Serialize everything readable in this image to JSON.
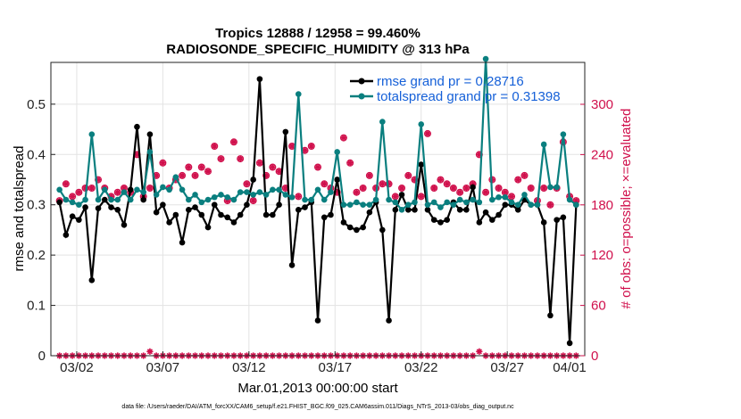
{
  "chart_data": {
    "type": "line",
    "title": [
      "Tropics 12888 / 12958 = 99.460%",
      "RADIOSONDE_SPECIFIC_HUMIDITY @ 313 hPa"
    ],
    "ylabel_left": "rmse and totalspread",
    "ylabel_right": "# of obs: o=possible; ×=evaluated",
    "xlabel": "Mar.01,2013 00:00:00 start",
    "footer": "data file: /Users/raeder/DAI/ATM_forcXX/CAM6_setup/f.e21.FHIST_BGC.f09_025.CAM6assim.011/Diags_NTrS_2013-03/obs_diag_output.nc",
    "x_range": [
      0.5,
      31.5
    ],
    "ylim_left": [
      0,
      0.583
    ],
    "ylim_right": [
      0,
      350
    ],
    "xticks": [
      {
        "value": 2,
        "label": "03/02"
      },
      {
        "value": 7,
        "label": "03/07"
      },
      {
        "value": 12,
        "label": "03/12"
      },
      {
        "value": 17,
        "label": "03/17"
      },
      {
        "value": 22,
        "label": "03/22"
      },
      {
        "value": 27,
        "label": "03/27"
      },
      {
        "value": 32,
        "label": "04/01"
      }
    ],
    "yticks_left": [
      {
        "value": 0,
        "label": "0"
      },
      {
        "value": 0.1,
        "label": "0.1"
      },
      {
        "value": 0.2,
        "label": "0.2"
      },
      {
        "value": 0.3,
        "label": "0.3"
      },
      {
        "value": 0.4,
        "label": "0.4"
      },
      {
        "value": 0.5,
        "label": "0.5"
      }
    ],
    "yticks_right": [
      {
        "value": 0,
        "label": "0"
      },
      {
        "value": 60,
        "label": "60"
      },
      {
        "value": 120,
        "label": "120"
      },
      {
        "value": 180,
        "label": "180"
      },
      {
        "value": 240,
        "label": "240"
      },
      {
        "value": 300,
        "label": "300"
      }
    ],
    "grid": true,
    "legend_position": "top-right",
    "colors": {
      "rmse": "#000000",
      "spread": "#0a7f7f",
      "obs": "#d0104c",
      "legend_text": "#1560d8",
      "grid": "#e3e3e3"
    },
    "series": [
      {
        "name": "rmse grand pr = 0.28716",
        "key": "rmse",
        "values": [
          0.305,
          0.24,
          0.277,
          0.27,
          0.295,
          0.15,
          0.293,
          0.31,
          0.295,
          0.29,
          0.26,
          0.33,
          0.455,
          0.31,
          0.44,
          0.285,
          0.3,
          0.265,
          0.28,
          0.225,
          0.29,
          0.295,
          0.28,
          0.255,
          0.3,
          0.28,
          0.275,
          0.265,
          0.28,
          0.3,
          0.35,
          0.55,
          0.28,
          0.28,
          0.3,
          0.445,
          0.18,
          0.29,
          0.295,
          0.305,
          0.07,
          0.275,
          0.28,
          0.35,
          0.265,
          0.255,
          0.25,
          0.255,
          0.285,
          0.305,
          0.25,
          0.07,
          0.29,
          0.32,
          0.29,
          0.29,
          0.38,
          0.29,
          0.27,
          0.265,
          0.27,
          0.305,
          0.29,
          0.29,
          0.335,
          0.265,
          0.285,
          0.27,
          0.28,
          0.3,
          0.3,
          0.29,
          0.31,
          0.3,
          0.3,
          0.265,
          0.08,
          0.27,
          0.275,
          0.025,
          0.3
        ],
        "marker": "dot"
      },
      {
        "name": "totalspread grand pr = 0.31398",
        "key": "spread",
        "values": [
          0.33,
          0.31,
          0.305,
          0.3,
          0.31,
          0.44,
          0.31,
          0.33,
          0.31,
          0.31,
          0.325,
          0.31,
          0.33,
          0.325,
          0.405,
          0.32,
          0.335,
          0.33,
          0.355,
          0.33,
          0.31,
          0.32,
          0.305,
          0.31,
          0.315,
          0.32,
          0.315,
          0.31,
          0.325,
          0.325,
          0.32,
          0.325,
          0.32,
          0.33,
          0.33,
          0.32,
          0.315,
          0.52,
          0.31,
          0.31,
          0.33,
          0.31,
          0.325,
          0.405,
          0.3,
          0.3,
          0.305,
          0.3,
          0.3,
          0.31,
          0.465,
          0.31,
          0.305,
          0.29,
          0.3,
          0.305,
          0.46,
          0.3,
          0.305,
          0.295,
          0.305,
          0.3,
          0.31,
          0.305,
          0.31,
          0.305,
          0.59,
          0.31,
          0.315,
          0.315,
          0.305,
          0.3,
          0.32,
          0.3,
          0.3,
          0.42,
          0.335,
          0.335,
          0.44,
          0.31,
          0.3
        ],
        "marker": "dot"
      },
      {
        "name": "obs possible",
        "key": "obs_possible",
        "axis": "right",
        "values": [
          185,
          205,
          190,
          195,
          200,
          200,
          210,
          200,
          190,
          195,
          200,
          195,
          240,
          190,
          200,
          215,
          230,
          200,
          210,
          215,
          225,
          215,
          225,
          220,
          250,
          235,
          185,
          255,
          235,
          205,
          185,
          230,
          215,
          225,
          220,
          200,
          250,
          190,
          245,
          250,
          225,
          205,
          200,
          195,
          260,
          230,
          195,
          200,
          215,
          200,
          205,
          205,
          190,
          200,
          215,
          210,
          190,
          265,
          200,
          210,
          205,
          200,
          195,
          200,
          205,
          240,
          195,
          210,
          200,
          195,
          190,
          210,
          215,
          200,
          185,
          200,
          180,
          200,
          255,
          190,
          185
        ],
        "marker": "circle"
      },
      {
        "name": "obs evaluated",
        "key": "obs_evaluated",
        "axis": "right",
        "values": [
          185,
          205,
          190,
          195,
          200,
          200,
          210,
          200,
          190,
          195,
          200,
          195,
          240,
          190,
          200,
          215,
          230,
          200,
          210,
          215,
          225,
          215,
          225,
          220,
          250,
          235,
          185,
          255,
          235,
          205,
          185,
          230,
          215,
          225,
          220,
          200,
          250,
          190,
          245,
          250,
          225,
          205,
          200,
          195,
          260,
          230,
          195,
          200,
          215,
          200,
          205,
          205,
          190,
          200,
          215,
          210,
          190,
          265,
          200,
          210,
          205,
          200,
          195,
          200,
          205,
          240,
          195,
          210,
          200,
          195,
          190,
          210,
          215,
          200,
          185,
          200,
          180,
          200,
          255,
          190,
          185
        ],
        "marker": "star"
      },
      {
        "name": "obs bottom possible",
        "key": "obs_bottom",
        "axis": "right",
        "values": [
          0,
          0,
          0,
          0,
          0,
          0,
          0,
          0,
          0,
          0,
          0,
          0,
          0,
          0,
          5,
          0,
          0,
          0,
          0,
          0,
          0,
          0,
          0,
          0,
          0,
          0,
          0,
          0,
          0,
          0,
          0,
          0,
          0,
          0,
          0,
          0,
          0,
          0,
          0,
          0,
          0,
          0,
          0,
          0,
          0,
          0,
          0,
          0,
          0,
          0,
          0,
          0,
          0,
          0,
          0,
          0,
          0,
          0,
          0,
          0,
          0,
          0,
          0,
          0,
          0,
          5,
          0,
          0,
          0,
          0,
          0,
          0,
          0,
          0,
          0,
          0,
          0,
          0,
          0,
          0,
          0
        ],
        "marker": "star"
      }
    ],
    "x_start": 1.0,
    "x_step": 0.375
  }
}
